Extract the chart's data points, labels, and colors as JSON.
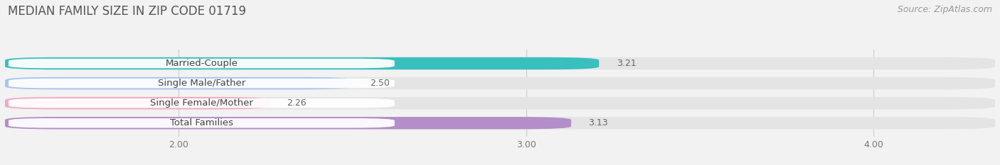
{
  "title": "MEDIAN FAMILY SIZE IN ZIP CODE 01719",
  "source": "Source: ZipAtlas.com",
  "categories": [
    "Married-Couple",
    "Single Male/Father",
    "Single Female/Mother",
    "Total Families"
  ],
  "values": [
    3.21,
    2.5,
    2.26,
    3.13
  ],
  "bar_colors": [
    "#3abfbf",
    "#a8c4f0",
    "#f5a8c0",
    "#b48ec8"
  ],
  "xlim": [
    1.5,
    4.35
  ],
  "xticks": [
    2.0,
    3.0,
    4.0
  ],
  "xtick_labels": [
    "2.00",
    "3.00",
    "4.00"
  ],
  "bg_color": "#f2f2f2",
  "bar_bg_color": "#e4e4e4",
  "label_bg_color": "#ffffff",
  "bar_height": 0.62,
  "title_fontsize": 12,
  "label_fontsize": 9.5,
  "value_fontsize": 9,
  "source_fontsize": 9
}
